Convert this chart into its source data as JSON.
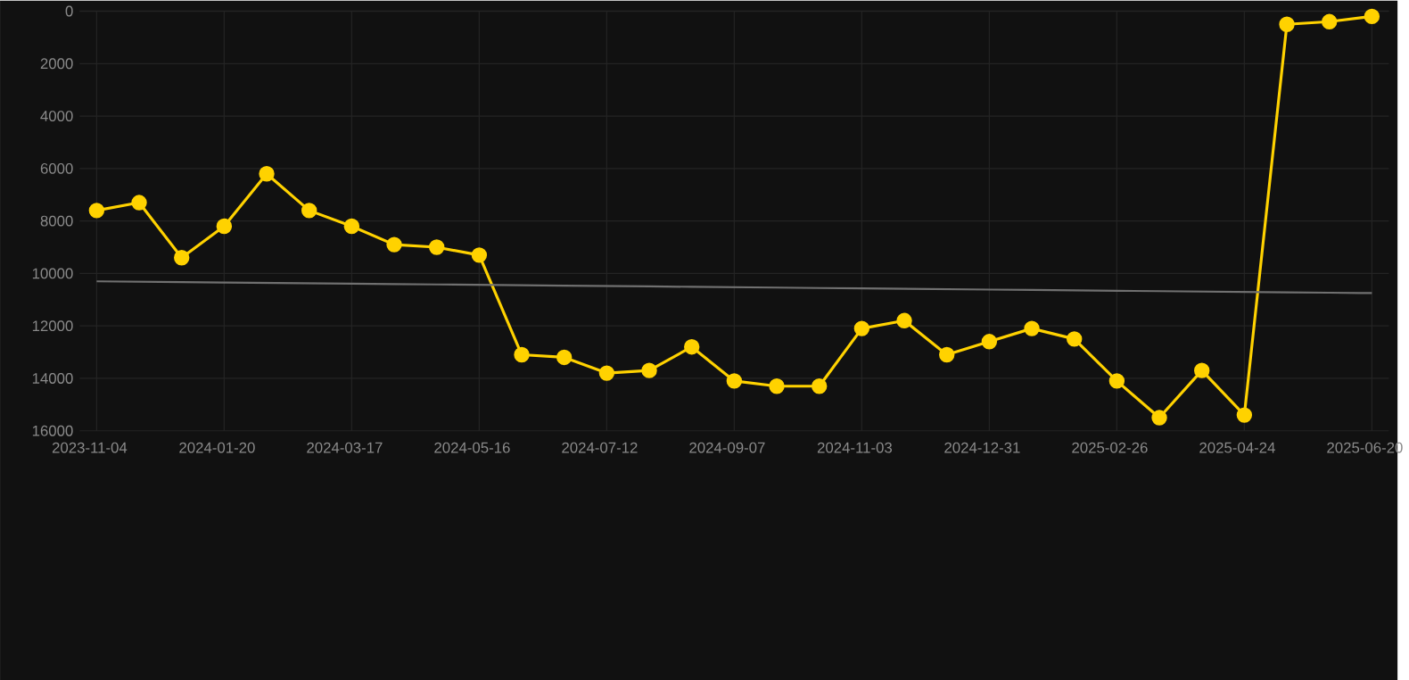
{
  "chart_data": {
    "type": "line",
    "categories": [
      "2023-11-04",
      null,
      null,
      "2024-01-20",
      null,
      null,
      "2024-03-17",
      null,
      null,
      "2024-05-16",
      null,
      null,
      "2024-07-12",
      null,
      null,
      "2024-09-07",
      null,
      null,
      "2024-11-03",
      null,
      null,
      "2024-12-31",
      null,
      null,
      "2025-02-26",
      null,
      null,
      "2025-04-24",
      null,
      null,
      "2025-06-20"
    ],
    "series": [
      {
        "color": "#ffd200",
        "marker": "circle",
        "values": [
          7600,
          7300,
          9400,
          8200,
          6200,
          7600,
          8200,
          8900,
          9000,
          9300,
          13100,
          13200,
          13800,
          13700,
          12800,
          14100,
          14300,
          14300,
          12100,
          11800,
          13100,
          12600,
          12100,
          12500,
          14100,
          15500,
          13700,
          15400,
          500,
          400,
          200
        ]
      },
      {
        "color": "#707070",
        "marker": "none",
        "values": [
          10300,
          10315,
          10330,
          10345,
          10360,
          10375,
          10390,
          10405,
          10420,
          10435,
          10450,
          10465,
          10480,
          10495,
          10510,
          10525,
          10540,
          10555,
          10570,
          10585,
          10600,
          10615,
          10630,
          10645,
          10660,
          10675,
          10690,
          10705,
          10720,
          10735,
          10750
        ]
      }
    ],
    "ylim": [
      16000,
      0
    ],
    "yticks": [
      0,
      2000,
      4000,
      6000,
      8000,
      10000,
      12000,
      14000,
      16000
    ],
    "grid": true
  }
}
